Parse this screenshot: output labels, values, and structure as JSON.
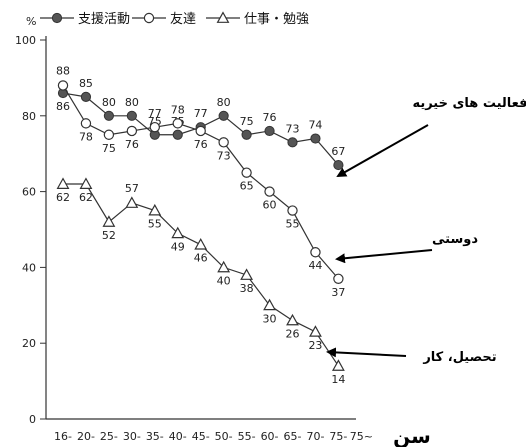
{
  "chart_data": {
    "type": "line",
    "ylabel": "%",
    "xlabel": "سن",
    "ylim": [
      0,
      100
    ],
    "yticks": [
      0,
      20,
      40,
      60,
      80,
      100
    ],
    "categories": [
      "16-",
      "20-",
      "25-",
      "30-",
      "35-",
      "40-",
      "45-",
      "50-",
      "55-",
      "60-",
      "65-",
      "70-",
      "75-",
      "75~"
    ],
    "category_positions": [
      0,
      1,
      2,
      3,
      4,
      5,
      6,
      7,
      8,
      9,
      10,
      11,
      12,
      13
    ],
    "legend_position": "top",
    "series": [
      {
        "name": "支援活動",
        "marker": "filled-circle",
        "x": [
          0,
          1,
          2,
          3,
          4,
          5,
          6,
          7,
          8,
          9,
          10,
          11,
          12
        ],
        "values": [
          86,
          85,
          80,
          80,
          75,
          75,
          77,
          80,
          75,
          76,
          73,
          74,
          67
        ]
      },
      {
        "name": "友達",
        "marker": "open-circle",
        "x": [
          0,
          1,
          2,
          3,
          4,
          5,
          6,
          7,
          8,
          9,
          10,
          11,
          12
        ],
        "values": [
          88,
          78,
          75,
          76,
          77,
          78,
          76,
          73,
          65,
          60,
          55,
          44,
          37
        ]
      },
      {
        "name": "仕事・勉強",
        "marker": "open-triangle",
        "x": [
          0,
          1,
          2,
          3,
          4,
          5,
          6,
          7,
          8,
          9,
          10,
          11,
          12
        ],
        "values": [
          62,
          62,
          52,
          57,
          55,
          49,
          46,
          40,
          38,
          30,
          26,
          23,
          14
        ]
      }
    ],
    "annotations": [
      {
        "text": "فعالیت های خیریه",
        "target_series": 0
      },
      {
        "text": "دوستی",
        "target_series": 1
      },
      {
        "text": "تحصیل، کار",
        "target_series": 2
      }
    ]
  }
}
